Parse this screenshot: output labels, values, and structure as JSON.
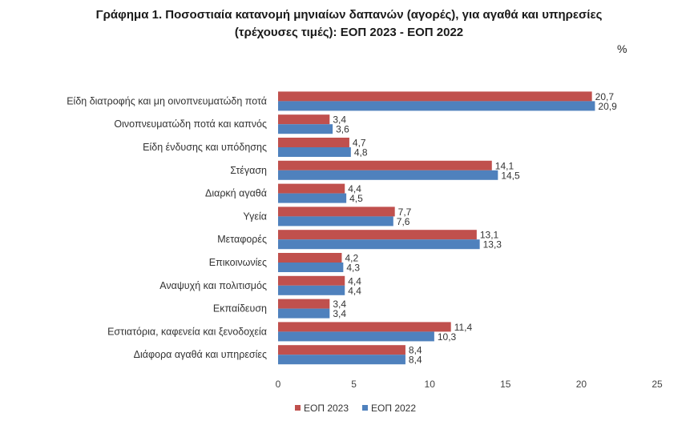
{
  "chart_data": {
    "type": "bar",
    "orientation": "horizontal",
    "title_line1": "Γράφημα 1. Ποσοστιαία κατανομή μηνιαίων δαπανών (αγορές), για αγαθά και υπηρεσίες",
    "title_line2": "(τρέχουσες τιμές): ΕΟΠ 2023 - ΕΟΠ 2022",
    "unit": "%",
    "categories": [
      "Είδη διατροφής και μη οινοπνευματώδη ποτά",
      "Οινοπνευματώδη ποτά και καπνός",
      "Είδη ένδυσης και υπόδησης",
      "Στέγαση",
      "Διαρκή αγαθά",
      "Υγεία",
      "Μεταφορές",
      "Επικοινωνίες",
      "Αναψυχή και πολιτισμός",
      "Εκπαίδευση",
      "Εστιατόρια, καφενεία  και ξενοδοχεία",
      "Διάφορα αγαθά και υπηρεσίες"
    ],
    "series": [
      {
        "name": "ΕΟΠ 2023",
        "color": "#C0504D",
        "values": [
          20.7,
          3.4,
          4.7,
          14.1,
          4.4,
          7.7,
          13.1,
          4.2,
          4.4,
          3.4,
          11.4,
          8.4
        ],
        "labels": [
          "20,7",
          "3,4",
          "4,7",
          "14,1",
          "4,4",
          "7,7",
          "13,1",
          "4,2",
          "4,4",
          "3,4",
          "11,4",
          "8,4"
        ]
      },
      {
        "name": "ΕΟΠ 2022",
        "color": "#4F81BD",
        "values": [
          20.9,
          3.6,
          4.8,
          14.5,
          4.5,
          7.6,
          13.3,
          4.3,
          4.4,
          3.4,
          10.3,
          8.4
        ],
        "labels": [
          "20,9",
          "3,6",
          "4,8",
          "14,5",
          "4,5",
          "7,6",
          "13,3",
          "4,3",
          "4,4",
          "3,4",
          "10,3",
          "8,4"
        ]
      }
    ],
    "xlim": [
      0,
      25
    ],
    "xticks": [
      "0",
      "5",
      "10",
      "15",
      "20",
      "25"
    ],
    "legend_position": "bottom",
    "grid": false
  }
}
